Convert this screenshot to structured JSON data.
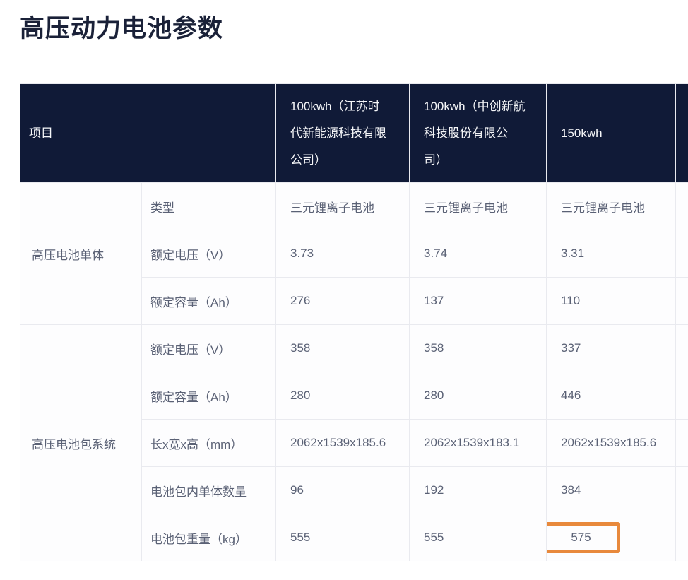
{
  "page": {
    "title": "高压动力电池参数"
  },
  "table": {
    "header": {
      "item_label": "项目",
      "columns": [
        "100kwh（江苏时代新能源科技有限公司）",
        "100kwh（中创新航科技股份有限公司）",
        "150kwh"
      ]
    },
    "groups": [
      {
        "name": "高压电池单体",
        "rows": [
          {
            "label": "类型",
            "values": [
              "三元锂离子电池",
              "三元锂离子电池",
              "三元锂离子电池"
            ]
          },
          {
            "label": "额定电压（V）",
            "values": [
              "3.73",
              "3.74",
              "3.31"
            ]
          },
          {
            "label": "额定容量（Ah）",
            "values": [
              "276",
              "137",
              "110"
            ]
          }
        ]
      },
      {
        "name": "高压电池包系统",
        "rows": [
          {
            "label": "额定电压（V）",
            "values": [
              "358",
              "358",
              "337"
            ]
          },
          {
            "label": "额定容量（Ah）",
            "values": [
              "280",
              "280",
              "446"
            ]
          },
          {
            "label": "长x宽x高（mm）",
            "values": [
              "2062x1539x185.6",
              "2062x1539x183.1",
              "2062x1539x185.6"
            ]
          },
          {
            "label": "电池包内单体数量",
            "values": [
              "96",
              "192",
              "384"
            ]
          },
          {
            "label": "电池包重量（kg）",
            "values": [
              "555",
              "555",
              "575"
            ]
          }
        ]
      }
    ]
  },
  "annotation": {
    "highlighted_value": "575",
    "highlighted_row": "电池包重量（kg）",
    "highlighted_column": "150kwh",
    "box_color": "#E8893C"
  },
  "colors": {
    "header_bg": "#101A37",
    "header_text": "#F5F6F8",
    "body_text": "#5A6175",
    "border": "#E9EAEF",
    "title_text": "#1A2138",
    "accent_orange": "#E8893C"
  }
}
